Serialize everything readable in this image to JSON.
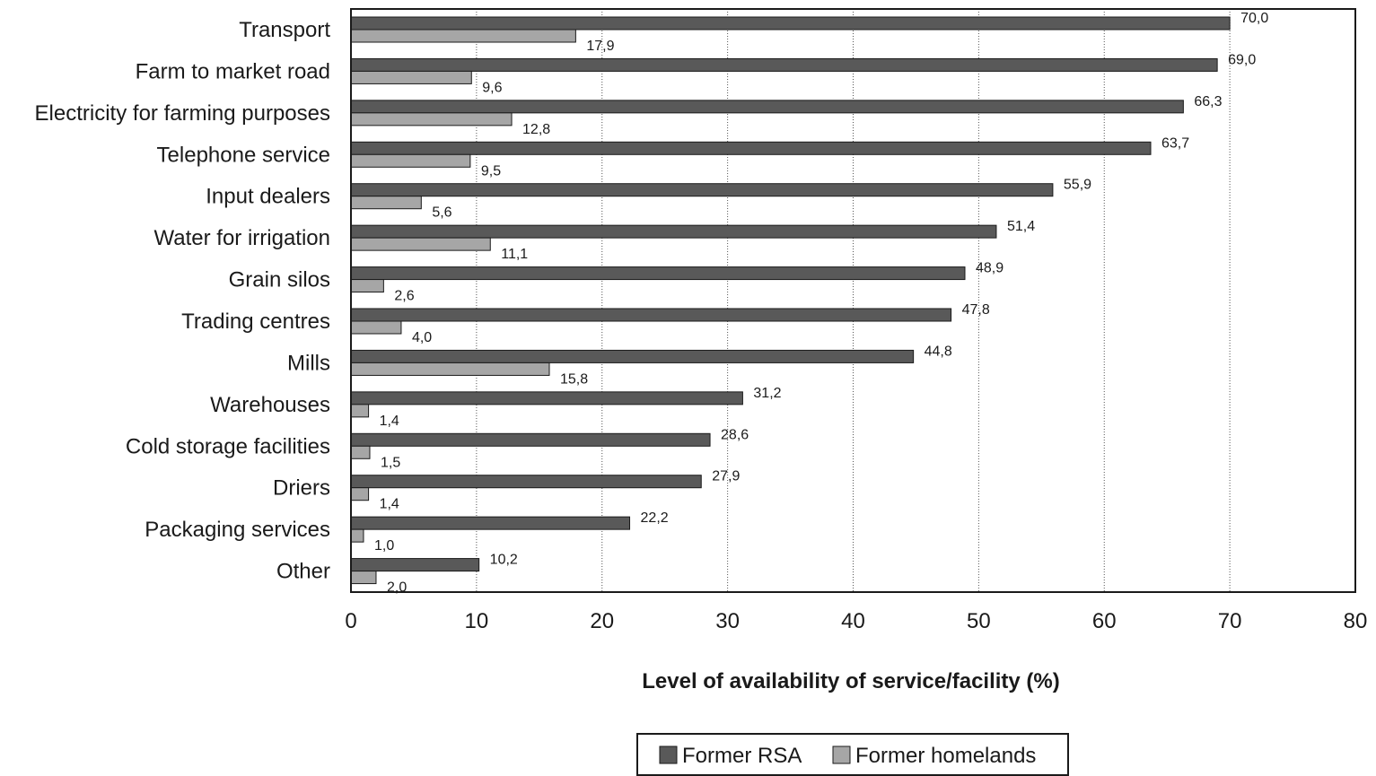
{
  "chart_data": {
    "type": "bar",
    "orientation": "horizontal",
    "title": "",
    "xlabel": "Level of availability of service/facility (%)",
    "ylabel": "",
    "xlim": [
      0,
      80
    ],
    "x_ticks": [
      0,
      10,
      20,
      30,
      40,
      50,
      60,
      70,
      80
    ],
    "grid": "vertical dotted",
    "legend_position": "bottom-center",
    "categories": [
      "Transport",
      "Farm to market road",
      "Electricity for farming purposes",
      "Telephone service",
      "Input dealers",
      "Water for irrigation",
      "Grain silos",
      "Trading centres",
      "Mills",
      "Warehouses",
      "Cold storage facilities",
      "Driers",
      "Packaging services",
      "Other"
    ],
    "series": [
      {
        "name": "Former RSA",
        "color": "#595959",
        "values": [
          70.0,
          69.0,
          66.3,
          63.7,
          55.9,
          51.4,
          48.9,
          47.8,
          44.8,
          31.2,
          28.6,
          27.9,
          22.2,
          10.2
        ],
        "labels": [
          "70,0",
          "69,0",
          "66,3",
          "63,7",
          "55,9",
          "51,4",
          "48,9",
          "47,8",
          "44,8",
          "31,2",
          "28,6",
          "27,9",
          "22,2",
          "10,2"
        ]
      },
      {
        "name": "Former homelands",
        "color": "#a6a6a6",
        "values": [
          17.9,
          9.6,
          12.8,
          9.5,
          5.6,
          11.1,
          2.6,
          4.0,
          15.8,
          1.4,
          1.5,
          1.4,
          1.0,
          2.0
        ],
        "labels": [
          "17,9",
          "9,6",
          "12,8",
          "9,5",
          "5,6",
          "11,1",
          "2,6",
          "4,0",
          "15,8",
          "1,4",
          "1,5",
          "1,4",
          "1,0",
          "2,0"
        ]
      }
    ]
  }
}
